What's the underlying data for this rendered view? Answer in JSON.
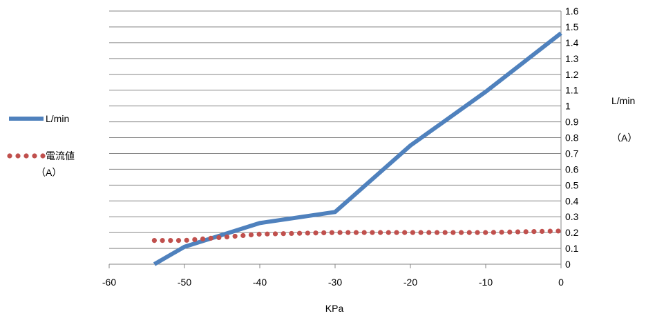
{
  "chart_data": {
    "type": "line",
    "title": "",
    "xlabel": "KPa",
    "ylabel": "L/min",
    "ylabel_secondary": "（A）",
    "xlim": [
      -60,
      0
    ],
    "ylim": [
      0,
      1.6
    ],
    "x_ticks": [
      "-60",
      "-50",
      "-40",
      "-30",
      "-20",
      "-10",
      "0"
    ],
    "y_ticks": [
      "0",
      "0.1",
      "0.2",
      "0.3",
      "0.4",
      "0.5",
      "0.6",
      "0.7",
      "0.8",
      "0.9",
      "1",
      "1.1",
      "1.2",
      "1.3",
      "1.4",
      "1.5",
      "1.6"
    ],
    "grid": true,
    "legend_position": "left",
    "series": [
      {
        "name": "L/min",
        "style": "solid",
        "color": "#4f81bd",
        "x": [
          -54,
          -50,
          -40,
          -30,
          -20,
          -10,
          0
        ],
        "y": [
          0,
          0.11,
          0.26,
          0.33,
          0.75,
          1.09,
          1.46
        ]
      },
      {
        "name": "電流値",
        "name_line2": "（A）",
        "style": "dotted",
        "color": "#c0504d",
        "x": [
          -54,
          -50,
          -40,
          -30,
          -20,
          -10,
          0
        ],
        "y": [
          0.15,
          0.15,
          0.19,
          0.2,
          0.2,
          0.2,
          0.21
        ]
      }
    ]
  }
}
